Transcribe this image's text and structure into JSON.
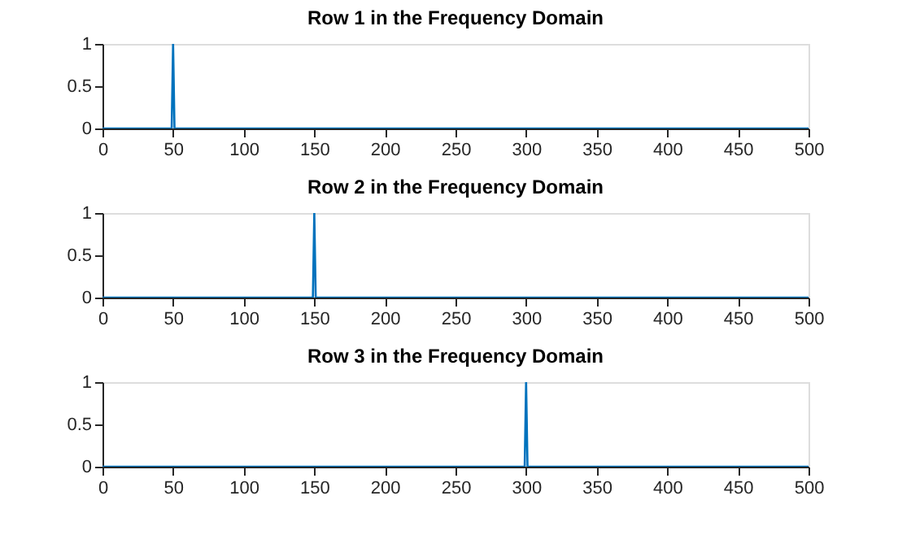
{
  "chart_data": [
    {
      "type": "line",
      "title": "Row 1 in the Frequency Domain",
      "x": [
        0,
        49,
        50,
        51,
        500
      ],
      "series": [
        {
          "color": "#0072bd",
          "values": [
            0,
            0,
            1,
            0,
            0
          ]
        }
      ],
      "xlim": [
        0,
        500
      ],
      "xticks": [
        0,
        50,
        100,
        150,
        200,
        250,
        300,
        350,
        400,
        450,
        500
      ],
      "ylim": [
        0,
        1
      ],
      "yticks": [
        0,
        0.5,
        1
      ],
      "grid": false
    },
    {
      "type": "line",
      "title": "Row 2 in the Frequency Domain",
      "x": [
        0,
        149,
        150,
        151,
        500
      ],
      "series": [
        {
          "color": "#0072bd",
          "values": [
            0,
            0,
            1,
            0,
            0
          ]
        }
      ],
      "xlim": [
        0,
        500
      ],
      "xticks": [
        0,
        50,
        100,
        150,
        200,
        250,
        300,
        350,
        400,
        450,
        500
      ],
      "ylim": [
        0,
        1
      ],
      "yticks": [
        0,
        0.5,
        1
      ],
      "grid": false
    },
    {
      "type": "line",
      "title": "Row 3 in the Frequency Domain",
      "x": [
        0,
        299,
        300,
        301,
        500
      ],
      "series": [
        {
          "color": "#0072bd",
          "values": [
            0,
            0,
            1,
            0,
            0
          ]
        }
      ],
      "xlim": [
        0,
        500
      ],
      "xticks": [
        0,
        50,
        100,
        150,
        200,
        250,
        300,
        350,
        400,
        450,
        500
      ],
      "ylim": [
        0,
        1
      ],
      "yticks": [
        0,
        0.5,
        1
      ],
      "grid": false
    }
  ]
}
